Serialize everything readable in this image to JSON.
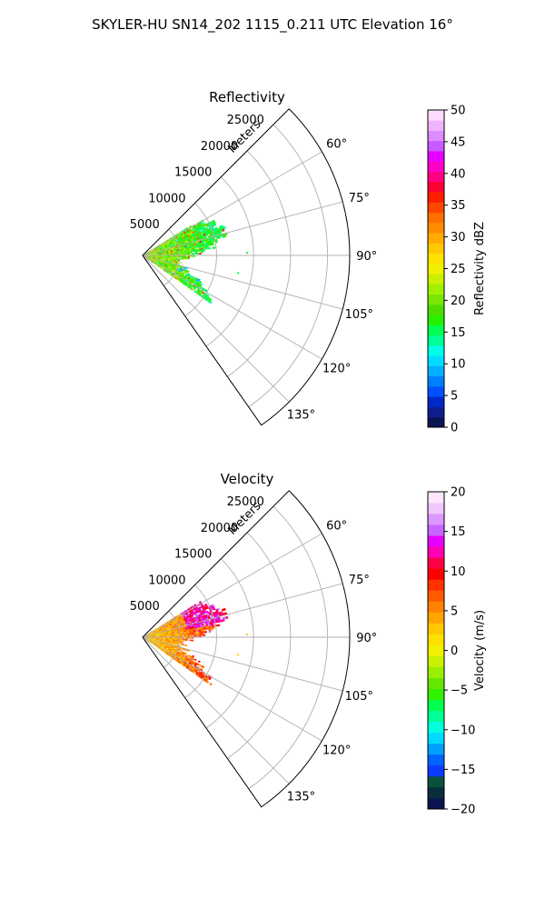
{
  "figure": {
    "suptitle": "SKYLER-HU  SN14_202  1115_0.211 UTC Elevation 16°"
  },
  "chart_data": [
    {
      "type": "heatmap",
      "subtype": "polar-sector (radar PPI)",
      "title": "Reflectivity",
      "radial_label": "Meters",
      "radial_ticks": [
        5000,
        10000,
        15000,
        20000,
        25000
      ],
      "radial_tick_labels": [
        "5000",
        "10000",
        "15000",
        "20000",
        "25000"
      ],
      "radial_range": [
        0,
        28000
      ],
      "angular_ticks_deg": [
        60,
        75,
        90,
        105,
        120,
        135
      ],
      "angular_tick_labels": [
        "60°",
        "75°",
        "90°",
        "105°",
        "120°",
        "135°"
      ],
      "angular_range_deg": [
        45,
        145
      ],
      "grid": true,
      "colorbar": {
        "label": "Reflectivity dBZ",
        "range": [
          0,
          50
        ],
        "ticks": [
          0,
          5,
          10,
          15,
          20,
          25,
          30,
          35,
          40,
          45,
          50
        ],
        "tick_labels": [
          "0",
          "5",
          "10",
          "15",
          "20",
          "25",
          "30",
          "35",
          "40",
          "45",
          "50"
        ],
        "colors": [
          "#0a1450",
          "#0f1e8c",
          "#0028c8",
          "#0050ff",
          "#0080ff",
          "#00b0ff",
          "#00dcff",
          "#00ffe6",
          "#00ff96",
          "#00ff50",
          "#28f000",
          "#50dc00",
          "#78e600",
          "#a0f000",
          "#c8f000",
          "#f0f000",
          "#ffe100",
          "#ffc800",
          "#ffaa00",
          "#ff8c00",
          "#ff6e00",
          "#ff4600",
          "#ff1e00",
          "#ff0032",
          "#ff0082",
          "#ff00c8",
          "#e600ff",
          "#c85aff",
          "#dc8cff",
          "#f0b4ff",
          "#ffdcff"
        ]
      },
      "echo_summary": {
        "range_extent_m": [
          0,
          12000
        ],
        "azimuth_extent_deg": [
          58,
          125
        ],
        "typical_value": 15,
        "max_value": 38
      }
    },
    {
      "type": "heatmap",
      "subtype": "polar-sector (radar PPI)",
      "title": "Velocity",
      "radial_label": "Meters",
      "radial_ticks": [
        5000,
        10000,
        15000,
        20000,
        25000
      ],
      "radial_tick_labels": [
        "5000",
        "10000",
        "15000",
        "20000",
        "25000"
      ],
      "radial_range": [
        0,
        28000
      ],
      "angular_ticks_deg": [
        60,
        75,
        90,
        105,
        120,
        135
      ],
      "angular_tick_labels": [
        "60°",
        "75°",
        "90°",
        "105°",
        "120°",
        "135°"
      ],
      "angular_range_deg": [
        45,
        145
      ],
      "grid": true,
      "colorbar": {
        "label": "Velocity (m/s)",
        "range": [
          -20,
          20
        ],
        "ticks": [
          -20,
          -15,
          -10,
          -5,
          0,
          5,
          10,
          15,
          20
        ],
        "tick_labels": [
          "−20",
          "−15",
          "−10",
          "−5",
          "0",
          "5",
          "10",
          "15",
          "20"
        ],
        "colors": [
          "#0a1450",
          "#0a2d3c",
          "#0a503c",
          "#0a3cff",
          "#0064ff",
          "#00a0ff",
          "#00dcff",
          "#00ffdc",
          "#00ff96",
          "#00ff50",
          "#32f000",
          "#64e600",
          "#96f000",
          "#c8f000",
          "#f0f000",
          "#ffe100",
          "#ffc800",
          "#ffa500",
          "#ff8200",
          "#ff5a00",
          "#ff3200",
          "#ff0000",
          "#ff0046",
          "#ff00b4",
          "#e600ff",
          "#c864ff",
          "#dc96ff",
          "#f0c8ff",
          "#ffe6ff"
        ]
      },
      "echo_summary": {
        "range_extent_m": [
          0,
          12000
        ],
        "azimuth_extent_deg": [
          58,
          125
        ],
        "typical_value": 5,
        "max_value": 16
      }
    }
  ]
}
